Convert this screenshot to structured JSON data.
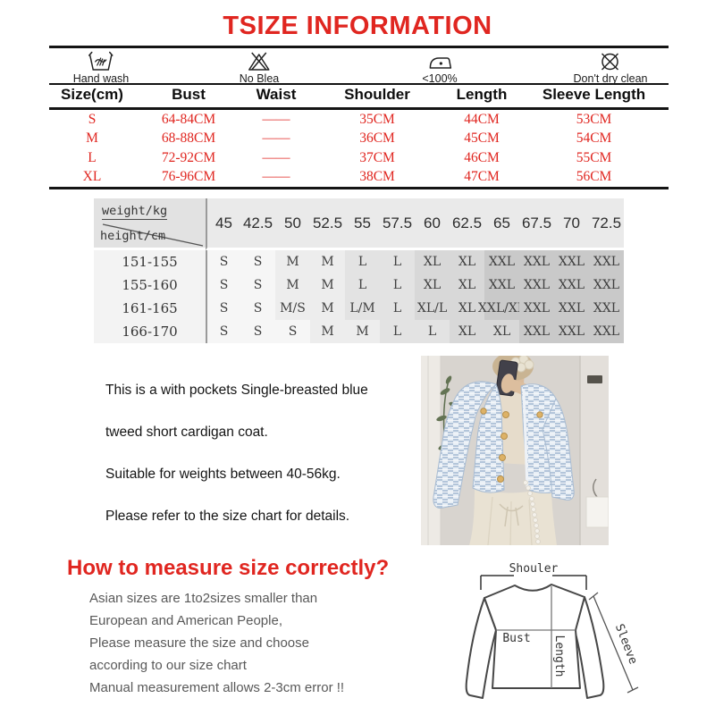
{
  "title": "TSIZE INFORMATION",
  "care": {
    "items": [
      {
        "icon": "hand-wash-icon",
        "label": "Hand wash"
      },
      {
        "icon": "no-bleach-icon",
        "label": "No Blea"
      },
      {
        "icon": "iron-max-icon",
        "label": "<100%"
      },
      {
        "icon": "no-dry-clean-icon",
        "label": "Don't dry clean"
      }
    ]
  },
  "size_table": {
    "headers": [
      "Size(cm)",
      "Bust",
      "Waist",
      "Shoulder",
      "Length",
      "Sleeve Length"
    ],
    "rows": [
      [
        "S",
        "64-84CM",
        "——",
        "35CM",
        "44CM",
        "53CM"
      ],
      [
        "M",
        "68-88CM",
        "——",
        "36CM",
        "45CM",
        "54CM"
      ],
      [
        "L",
        "72-92CM",
        "——",
        "37CM",
        "46CM",
        "55CM"
      ],
      [
        "XL",
        "76-96CM",
        "——",
        "38CM",
        "47CM",
        "56CM"
      ]
    ]
  },
  "fit_matrix": {
    "corner_top": "weight/kg",
    "corner_bottom": "height/cm",
    "weights": [
      "45",
      "42.5",
      "50",
      "52.5",
      "55",
      "57.5",
      "60",
      "62.5",
      "65",
      "67.5",
      "70",
      "72.5"
    ],
    "rows": [
      {
        "height": "151-155",
        "sizes": [
          "S",
          "S",
          "M",
          "M",
          "L",
          "L",
          "XL",
          "XL",
          "XXL",
          "XXL",
          "XXL",
          "XXL"
        ]
      },
      {
        "height": "155-160",
        "sizes": [
          "S",
          "S",
          "M",
          "M",
          "L",
          "L",
          "XL",
          "XL",
          "XXL",
          "XXL",
          "XXL",
          "XXL"
        ]
      },
      {
        "height": "161-165",
        "sizes": [
          "S",
          "S",
          "M/S",
          "M",
          "L/M",
          "L",
          "XL/L",
          "XL",
          "XXL/XL",
          "XXL",
          "XXL",
          "XXL"
        ]
      },
      {
        "height": "166-170",
        "sizes": [
          "S",
          "S",
          "S",
          "M",
          "M",
          "L",
          "L",
          "XL",
          "XL",
          "XXL",
          "XXL",
          "XXL"
        ]
      }
    ],
    "shade_colors": {
      "S": "#f6f6f6",
      "M": "#ededed",
      "L": "#e3e3e3",
      "XL": "#d8d8d8",
      "XXL": "#c9c9c9"
    }
  },
  "description": {
    "lines": [
      "This is a with pockets Single-breasted blue",
      "tweed short cardigan coat.",
      "Suitable for weights between 40-56kg.",
      "Please refer to the size chart for details."
    ]
  },
  "measure": {
    "heading": "How to measure size correctly?",
    "lines": [
      "Asian sizes are 1to2sizes smaller than",
      "European and American People,",
      "Please measure the size and choose",
      "according to our size chart",
      "Manual measurement allows 2-3cm error !!"
    ]
  },
  "diagram": {
    "labels": {
      "shoulder": "Shouler",
      "bust": "Bust",
      "length": "Length",
      "sleeve": "Sleeve"
    }
  },
  "photo": {
    "alt": "Model wearing a blue tweed short cardigan coat"
  },
  "colors": {
    "accent_red": "#e02620",
    "table_line": "#141414",
    "matrix_divider": "#9a9a9a",
    "text_gray": "#595959"
  }
}
